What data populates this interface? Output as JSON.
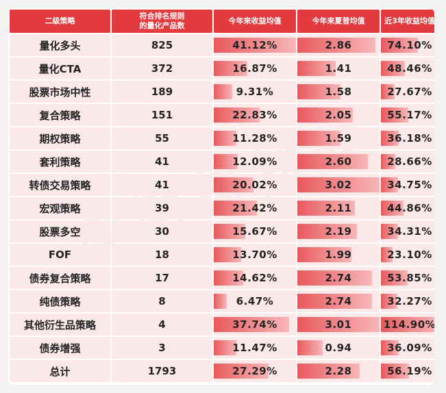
{
  "headers": [
    "二级策略",
    "符合排名规则\n的量化产品数",
    "今年来收益均值",
    "今年来夏普均值",
    "近3年收益均值"
  ],
  "max": {
    "ytd_return": 41.12,
    "sharpe": 3.02,
    "return_3y": 114.9
  },
  "rows": [
    {
      "name": "量化多头",
      "count": "825",
      "ytd_return": "41.12%",
      "sharpe": "2.86",
      "return_3y": "74.10%",
      "v_ytd": 41.12,
      "v_sharpe": 2.86,
      "v_3y": 74.1
    },
    {
      "name": "量化CTA",
      "count": "372",
      "ytd_return": "16.87%",
      "sharpe": "1.41",
      "return_3y": "48.46%",
      "v_ytd": 16.87,
      "v_sharpe": 1.41,
      "v_3y": 48.46
    },
    {
      "name": "股票市场中性",
      "count": "189",
      "ytd_return": "9.31%",
      "sharpe": "1.58",
      "return_3y": "27.67%",
      "v_ytd": 9.31,
      "v_sharpe": 1.58,
      "v_3y": 27.67
    },
    {
      "name": "复合策略",
      "count": "151",
      "ytd_return": "22.83%",
      "sharpe": "2.05",
      "return_3y": "55.17%",
      "v_ytd": 22.83,
      "v_sharpe": 2.05,
      "v_3y": 55.17
    },
    {
      "name": "期权策略",
      "count": "55",
      "ytd_return": "11.28%",
      "sharpe": "1.59",
      "return_3y": "36.18%",
      "v_ytd": 11.28,
      "v_sharpe": 1.59,
      "v_3y": 36.18
    },
    {
      "name": "套利策略",
      "count": "41",
      "ytd_return": "12.09%",
      "sharpe": "2.60",
      "return_3y": "28.66%",
      "v_ytd": 12.09,
      "v_sharpe": 2.6,
      "v_3y": 28.66
    },
    {
      "name": "转债交易策略",
      "count": "41",
      "ytd_return": "20.02%",
      "sharpe": "3.02",
      "return_3y": "34.75%",
      "v_ytd": 20.02,
      "v_sharpe": 3.02,
      "v_3y": 34.75
    },
    {
      "name": "宏观策略",
      "count": "39",
      "ytd_return": "21.42%",
      "sharpe": "2.11",
      "return_3y": "44.86%",
      "v_ytd": 21.42,
      "v_sharpe": 2.11,
      "v_3y": 44.86
    },
    {
      "name": "股票多空",
      "count": "30",
      "ytd_return": "15.67%",
      "sharpe": "2.19",
      "return_3y": "34.31%",
      "v_ytd": 15.67,
      "v_sharpe": 2.19,
      "v_3y": 34.31
    },
    {
      "name": "FOF",
      "count": "18",
      "ytd_return": "13.70%",
      "sharpe": "1.99",
      "return_3y": "23.10%",
      "v_ytd": 13.7,
      "v_sharpe": 1.99,
      "v_3y": 23.1
    },
    {
      "name": "债券复合策略",
      "count": "17",
      "ytd_return": "14.62%",
      "sharpe": "2.74",
      "return_3y": "53.85%",
      "v_ytd": 14.62,
      "v_sharpe": 2.74,
      "v_3y": 53.85
    },
    {
      "name": "纯债策略",
      "count": "8",
      "ytd_return": "6.47%",
      "sharpe": "2.74",
      "return_3y": "32.27%",
      "v_ytd": 6.47,
      "v_sharpe": 2.74,
      "v_3y": 32.27
    },
    {
      "name": "其他衍生品策略",
      "count": "4",
      "ytd_return": "37.74%",
      "sharpe": "3.01",
      "return_3y": "114.90%",
      "v_ytd": 37.74,
      "v_sharpe": 3.01,
      "v_3y": 114.9
    },
    {
      "name": "债券增强",
      "count": "3",
      "ytd_return": "11.47%",
      "sharpe": "0.94",
      "return_3y": "36.09%",
      "v_ytd": 11.47,
      "v_sharpe": 0.94,
      "v_3y": 36.09
    },
    {
      "name": "总计",
      "count": "1793",
      "ytd_return": "27.29%",
      "sharpe": "2.28",
      "return_3y": "56.19%",
      "v_ytd": 27.29,
      "v_sharpe": 2.28,
      "v_3y": 56.19
    }
  ],
  "colors": {
    "header_bg": "#e23a3e",
    "cell_bg": "#fbe9ea",
    "bar": "#e8595c"
  }
}
